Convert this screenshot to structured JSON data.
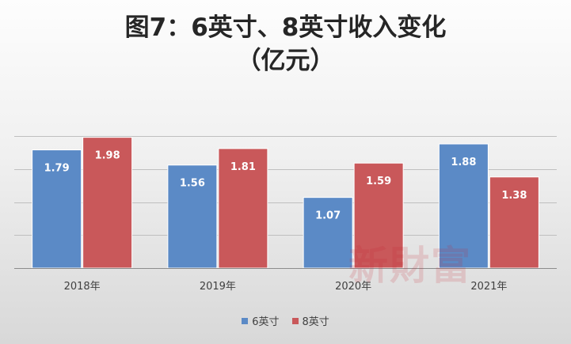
{
  "chart_data": {
    "type": "bar",
    "title_line1": "图7：6英寸、8英寸收入变化",
    "title_line2": "（亿元）",
    "categories": [
      "2018年",
      "2019年",
      "2020年",
      "2021年"
    ],
    "series": [
      {
        "name": "6英寸",
        "values": [
          1.79,
          1.56,
          1.07,
          1.88
        ],
        "color": "#5b8ac6"
      },
      {
        "name": "8英寸",
        "values": [
          1.98,
          1.81,
          1.59,
          1.38
        ],
        "color": "#c9585a"
      }
    ],
    "xlabel": "",
    "ylabel": "",
    "ylim": [
      0,
      2.0
    ],
    "grid": true,
    "legend": "bottom",
    "data_labels": true
  },
  "watermark": "新財富"
}
